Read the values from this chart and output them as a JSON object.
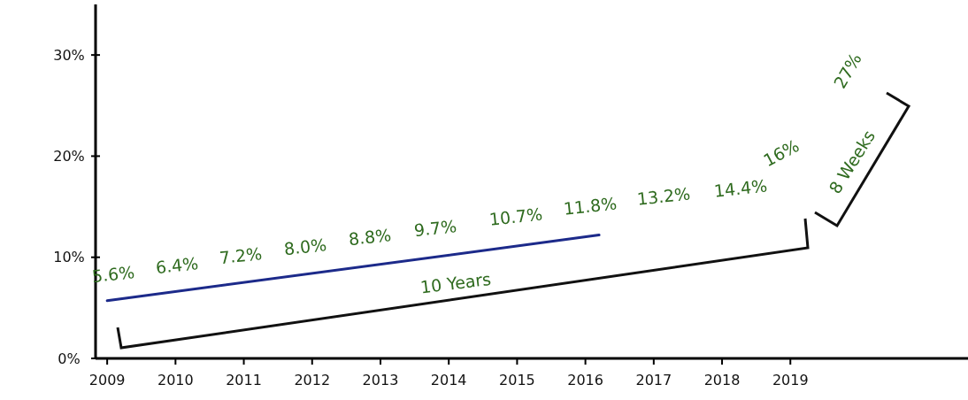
{
  "chart_data": {
    "type": "line",
    "x": [
      2009,
      2016.2
    ],
    "series": [
      {
        "color": "#1c2a8a",
        "values": [
          5.7,
          12.2
        ]
      }
    ],
    "xlim": [
      2008.83,
      2021.6
    ],
    "xticks": [
      2009,
      2010,
      2011,
      2012,
      2013,
      2014,
      2015,
      2016,
      2017,
      2018,
      2019
    ],
    "ylim": [
      0,
      35
    ],
    "yticks": [
      {
        "value": 0,
        "label": "0%"
      },
      {
        "value": 10,
        "label": "10%"
      },
      {
        "value": 20,
        "label": "20%"
      },
      {
        "value": 30,
        "label": "30%"
      }
    ],
    "marker": "none",
    "line_style": "solid",
    "grid": false,
    "annotations": [
      "5.6%",
      "6.4%",
      "7.2%",
      "8.0%",
      "8.8%",
      "9.7%",
      "10.7%",
      "11.8%",
      "13.2%",
      "14.4%",
      "16%",
      "27%",
      "10 Years",
      "8 Weeks"
    ]
  }
}
